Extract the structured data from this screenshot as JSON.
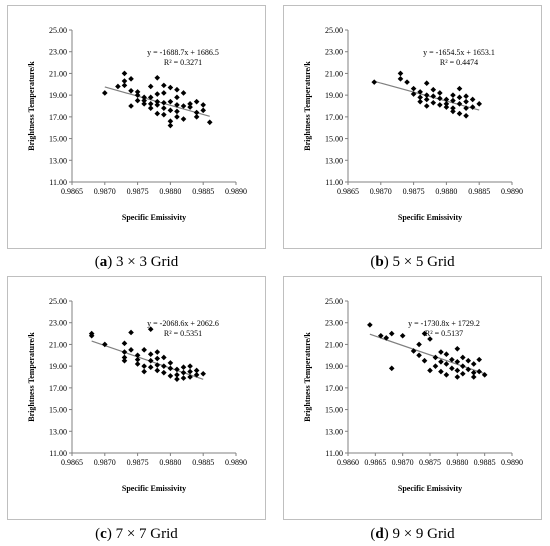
{
  "figure": {
    "panels": [
      {
        "caption_letter": "a",
        "caption_text": "3 × 3 Grid",
        "caption_prefix": "(",
        "caption_suffix": ")"
      },
      {
        "caption_letter": "b",
        "caption_text": "5 × 5 Grid",
        "caption_prefix": "(",
        "caption_suffix": ")"
      },
      {
        "caption_letter": "c",
        "caption_text": "7 × 7 Grid",
        "caption_prefix": "(",
        "caption_suffix": ")"
      },
      {
        "caption_letter": "d",
        "caption_text": "9 × 9 Grid",
        "caption_prefix": "(",
        "caption_suffix": ")"
      }
    ]
  },
  "chart_data": [
    {
      "type": "scatter",
      "xlabel": "Specific Emissivity",
      "ylabel": "Brightness Temperature/k",
      "xlim": [
        0.9865,
        0.989
      ],
      "ylim": [
        11.0,
        25.0
      ],
      "xticks": [
        "0.9865",
        "0.9870",
        "0.9875",
        "0.9880",
        "0.9885",
        "0.9890"
      ],
      "yticks": [
        "11.00",
        "13.00",
        "15.00",
        "17.00",
        "19.00",
        "21.00",
        "23.00",
        "25.00"
      ],
      "xtick_values": [
        0.9865,
        0.987,
        0.9875,
        0.988,
        0.9885,
        0.989
      ],
      "ytick_values": [
        11,
        13,
        15,
        17,
        19,
        21,
        23,
        25
      ],
      "equation": "y = -1688.7x + 1686.5",
      "r2": "R² = 0.3271",
      "trendline": {
        "slope": -1688.7,
        "intercept": 1686.5,
        "x_range": [
          0.987,
          0.9886
        ]
      },
      "grid": false,
      "points": [
        [
          0.987,
          19.2
        ],
        [
          0.9872,
          19.8
        ],
        [
          0.9873,
          20.3
        ],
        [
          0.9873,
          21.0
        ],
        [
          0.9873,
          19.9
        ],
        [
          0.9874,
          20.5
        ],
        [
          0.9874,
          19.4
        ],
        [
          0.9874,
          18.0
        ],
        [
          0.9875,
          19.3
        ],
        [
          0.9875,
          19.0
        ],
        [
          0.9875,
          18.5
        ],
        [
          0.9876,
          18.8
        ],
        [
          0.9876,
          18.5
        ],
        [
          0.9876,
          18.2
        ],
        [
          0.9877,
          19.8
        ],
        [
          0.9877,
          18.8
        ],
        [
          0.9877,
          18.2
        ],
        [
          0.9877,
          17.8
        ],
        [
          0.9878,
          20.6
        ],
        [
          0.9878,
          19.1
        ],
        [
          0.9878,
          18.4
        ],
        [
          0.9878,
          18.1
        ],
        [
          0.9878,
          17.3
        ],
        [
          0.9879,
          19.9
        ],
        [
          0.9879,
          19.2
        ],
        [
          0.9879,
          18.3
        ],
        [
          0.9879,
          17.8
        ],
        [
          0.9879,
          17.2
        ],
        [
          0.988,
          19.7
        ],
        [
          0.988,
          18.4
        ],
        [
          0.988,
          17.6
        ],
        [
          0.988,
          16.6
        ],
        [
          0.988,
          16.2
        ],
        [
          0.9881,
          19.5
        ],
        [
          0.9881,
          18.8
        ],
        [
          0.9881,
          18.1
        ],
        [
          0.9881,
          17.5
        ],
        [
          0.9881,
          17.0
        ],
        [
          0.9882,
          19.2
        ],
        [
          0.9882,
          18.0
        ],
        [
          0.9882,
          16.8
        ],
        [
          0.9883,
          18.2
        ],
        [
          0.9883,
          17.9
        ],
        [
          0.9884,
          18.4
        ],
        [
          0.9884,
          17.4
        ],
        [
          0.9884,
          17.0
        ],
        [
          0.9885,
          18.1
        ],
        [
          0.9885,
          17.6
        ],
        [
          0.9886,
          16.5
        ]
      ]
    },
    {
      "type": "scatter",
      "xlabel": "Specific Emissivity",
      "ylabel": "Brightness Temperature/k",
      "xlim": [
        0.9865,
        0.989
      ],
      "ylim": [
        11.0,
        25.0
      ],
      "xticks": [
        "0.9865",
        "0.9870",
        "0.9875",
        "0.9880",
        "0.9885",
        "0.9890"
      ],
      "yticks": [
        "11.00",
        "13.00",
        "15.00",
        "17.00",
        "19.00",
        "21.00",
        "23.00",
        "25.00"
      ],
      "xtick_values": [
        0.9865,
        0.987,
        0.9875,
        0.988,
        0.9885,
        0.989
      ],
      "ytick_values": [
        11,
        13,
        15,
        17,
        19,
        21,
        23,
        25
      ],
      "equation": "y = -1654.5x + 1653.1",
      "r2": "R² = 0.4474",
      "trendline": {
        "slope": -1654.5,
        "intercept": 1653.1,
        "x_range": [
          0.9869,
          0.9885
        ]
      },
      "grid": false,
      "points": [
        [
          0.9869,
          20.2
        ],
        [
          0.9873,
          21.0
        ],
        [
          0.9873,
          20.5
        ],
        [
          0.9874,
          20.2
        ],
        [
          0.9875,
          19.6
        ],
        [
          0.9875,
          19.1
        ],
        [
          0.9876,
          19.3
        ],
        [
          0.9876,
          18.8
        ],
        [
          0.9876,
          18.4
        ],
        [
          0.9877,
          20.1
        ],
        [
          0.9877,
          19.0
        ],
        [
          0.9877,
          18.6
        ],
        [
          0.9877,
          18.0
        ],
        [
          0.9878,
          19.5
        ],
        [
          0.9878,
          18.9
        ],
        [
          0.9878,
          18.3
        ],
        [
          0.9879,
          19.2
        ],
        [
          0.9879,
          18.7
        ],
        [
          0.9879,
          18.1
        ],
        [
          0.988,
          18.6
        ],
        [
          0.988,
          18.2
        ],
        [
          0.988,
          17.9
        ],
        [
          0.9881,
          19.0
        ],
        [
          0.9881,
          18.5
        ],
        [
          0.9881,
          17.8
        ],
        [
          0.9881,
          17.5
        ],
        [
          0.9882,
          19.6
        ],
        [
          0.9882,
          18.8
        ],
        [
          0.9882,
          18.2
        ],
        [
          0.9882,
          17.3
        ],
        [
          0.9883,
          18.9
        ],
        [
          0.9883,
          18.4
        ],
        [
          0.9883,
          17.8
        ],
        [
          0.9883,
          17.1
        ],
        [
          0.9884,
          18.6
        ],
        [
          0.9884,
          17.9
        ],
        [
          0.9885,
          18.2
        ]
      ]
    },
    {
      "type": "scatter",
      "xlabel": "Specific Emissivity",
      "ylabel": "Brightness Temperature/k",
      "xlim": [
        0.9865,
        0.989
      ],
      "ylim": [
        11.0,
        25.0
      ],
      "xticks": [
        "0.9865",
        "0.9870",
        "0.9875",
        "0.9880",
        "0.9885",
        "0.9890"
      ],
      "yticks": [
        "11.00",
        "13.00",
        "15.00",
        "17.00",
        "19.00",
        "21.00",
        "23.00",
        "25.00"
      ],
      "xtick_values": [
        0.9865,
        0.987,
        0.9875,
        0.988,
        0.9885,
        0.989
      ],
      "ytick_values": [
        11,
        13,
        15,
        17,
        19,
        21,
        23,
        25
      ],
      "equation": "y = -2068.6x + 2062.6",
      "r2": "R² = 0.5351",
      "trendline": {
        "slope": -2068.6,
        "intercept": 2062.6,
        "x_range": [
          0.9868,
          0.9885
        ]
      },
      "grid": false,
      "points": [
        [
          0.9868,
          21.8
        ],
        [
          0.9868,
          22.0
        ],
        [
          0.987,
          21.0
        ],
        [
          0.9873,
          21.1
        ],
        [
          0.9873,
          20.3
        ],
        [
          0.9873,
          19.8
        ],
        [
          0.9873,
          19.5
        ],
        [
          0.9874,
          22.1
        ],
        [
          0.9874,
          20.5
        ],
        [
          0.9875,
          20.0
        ],
        [
          0.9875,
          19.6
        ],
        [
          0.9875,
          19.2
        ],
        [
          0.9876,
          20.5
        ],
        [
          0.9876,
          19.0
        ],
        [
          0.9876,
          18.5
        ],
        [
          0.9877,
          20.1
        ],
        [
          0.9877,
          19.5
        ],
        [
          0.9877,
          18.9
        ],
        [
          0.9877,
          22.4
        ],
        [
          0.9878,
          20.3
        ],
        [
          0.9878,
          19.7
        ],
        [
          0.9878,
          19.1
        ],
        [
          0.9878,
          18.6
        ],
        [
          0.9879,
          19.8
        ],
        [
          0.9879,
          19.0
        ],
        [
          0.9879,
          18.4
        ],
        [
          0.988,
          19.3
        ],
        [
          0.988,
          18.8
        ],
        [
          0.988,
          18.1
        ],
        [
          0.9881,
          18.7
        ],
        [
          0.9881,
          18.2
        ],
        [
          0.9881,
          17.8
        ],
        [
          0.9882,
          18.9
        ],
        [
          0.9882,
          18.4
        ],
        [
          0.9882,
          17.9
        ],
        [
          0.9883,
          19.0
        ],
        [
          0.9883,
          18.5
        ],
        [
          0.9883,
          18.0
        ],
        [
          0.9884,
          18.6
        ],
        [
          0.9884,
          18.2
        ],
        [
          0.9885,
          18.3
        ]
      ]
    },
    {
      "type": "scatter",
      "xlabel": "Specific Emissivity",
      "ylabel": "Brightness Temperature/k",
      "xlim": [
        0.986,
        0.989
      ],
      "ylim": [
        11.0,
        25.0
      ],
      "xticks": [
        "0.9860",
        "0.9865",
        "0.9870",
        "0.9875",
        "0.9880",
        "0.9885",
        "0.9890"
      ],
      "yticks": [
        "11.00",
        "13.00",
        "15.00",
        "17.00",
        "19.00",
        "21.00",
        "23.00",
        "25.00"
      ],
      "xtick_values": [
        0.986,
        0.9865,
        0.987,
        0.9875,
        0.988,
        0.9885,
        0.989
      ],
      "ytick_values": [
        11,
        13,
        15,
        17,
        19,
        21,
        23,
        25
      ],
      "equation": "y = -1730.8x + 1729.2",
      "r2": "R² = 0.5137",
      "trendline": {
        "slope": -1730.8,
        "intercept": 1729.2,
        "x_range": [
          0.9864,
          0.9885
        ]
      },
      "grid": false,
      "points": [
        [
          0.9864,
          22.8
        ],
        [
          0.9866,
          21.8
        ],
        [
          0.9867,
          21.6
        ],
        [
          0.9868,
          22.0
        ],
        [
          0.9868,
          18.8
        ],
        [
          0.987,
          21.8
        ],
        [
          0.9872,
          20.4
        ],
        [
          0.9873,
          21.0
        ],
        [
          0.9873,
          20.0
        ],
        [
          0.9874,
          22.0
        ],
        [
          0.9874,
          19.5
        ],
        [
          0.9875,
          21.5
        ],
        [
          0.9875,
          18.6
        ],
        [
          0.9876,
          19.8
        ],
        [
          0.9876,
          19.0
        ],
        [
          0.9877,
          20.3
        ],
        [
          0.9877,
          19.4
        ],
        [
          0.9877,
          18.5
        ],
        [
          0.9878,
          20.1
        ],
        [
          0.9878,
          19.2
        ],
        [
          0.9878,
          18.2
        ],
        [
          0.9879,
          19.6
        ],
        [
          0.9879,
          18.8
        ],
        [
          0.988,
          20.6
        ],
        [
          0.988,
          19.4
        ],
        [
          0.988,
          18.6
        ],
        [
          0.988,
          18.0
        ],
        [
          0.9881,
          19.8
        ],
        [
          0.9881,
          19.0
        ],
        [
          0.9881,
          18.3
        ],
        [
          0.9882,
          19.5
        ],
        [
          0.9882,
          18.7
        ],
        [
          0.9883,
          19.2
        ],
        [
          0.9883,
          18.4
        ],
        [
          0.9883,
          18.0
        ],
        [
          0.9884,
          19.6
        ],
        [
          0.9884,
          18.5
        ],
        [
          0.9885,
          18.2
        ]
      ]
    }
  ]
}
